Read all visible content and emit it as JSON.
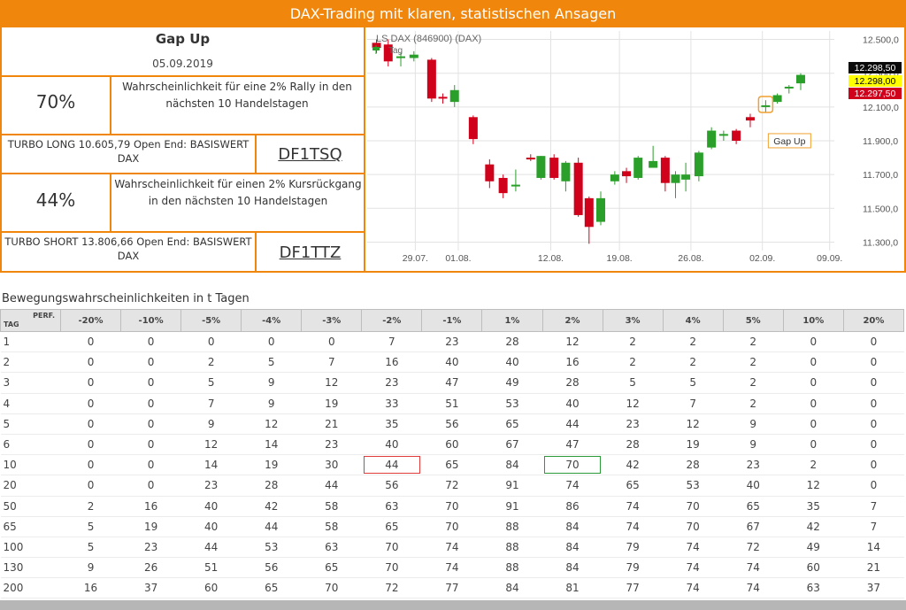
{
  "header": {
    "title": "DAX-Trading mit klaren, statistischen Ansagen"
  },
  "signal": {
    "title": "Gap Up",
    "date": "05.09.2019"
  },
  "rally": {
    "pct": "70%",
    "text": "Wahrscheinlichkeit für eine 2% Rally in den nächsten 10 Handelstagen"
  },
  "turbo_long": {
    "text": "TURBO LONG 10.605,79 Open End: BASISWERT DAX",
    "code": "DF1TSQ"
  },
  "decline": {
    "pct": "44%",
    "text": "Wahrscheinlichkeit für einen 2% Kursrückgang in den nächsten 10 Handelstagen"
  },
  "turbo_short": {
    "text": "TURBO SHORT 13.806,66 Open End: BASISWERT DAX",
    "code": "DF1TTZ"
  },
  "chart_data": {
    "type": "candlestick",
    "title": "LS DAX (846900) (DAX)",
    "legend_label": "Tag",
    "annotation": "Gap Up",
    "ylim": [
      11250,
      12550
    ],
    "y_ticks": [
      "12.500,0",
      "12.300,0",
      "12.100,0",
      "11.900,0",
      "11.700,0",
      "11.500,0",
      "11.300,0"
    ],
    "x_ticks": [
      "29.07.",
      "01.08.",
      "12.08.",
      "19.08.",
      "26.08.",
      "02.09.",
      "09.09."
    ],
    "price_tags": [
      {
        "label": "12.298,50",
        "color": "#0a0a0a"
      },
      {
        "label": "12.298,00",
        "color": "#ffff00"
      },
      {
        "label": "12.297,50",
        "color": "#d0021b"
      }
    ],
    "candles": [
      {
        "o": 12480,
        "h": 12500,
        "l": 12420,
        "c": 12450
      },
      {
        "o": 12470,
        "h": 12500,
        "l": 12340,
        "c": 12370
      },
      {
        "o": 12390,
        "h": 12420,
        "l": 12340,
        "c": 12400
      },
      {
        "o": 12390,
        "h": 12430,
        "l": 12370,
        "c": 12410
      },
      {
        "o": 12380,
        "h": 12390,
        "l": 12130,
        "c": 12150
      },
      {
        "o": 12160,
        "h": 12180,
        "l": 12120,
        "c": 12150
      },
      {
        "o": 12130,
        "h": 12230,
        "l": 12100,
        "c": 12200
      },
      {
        "o": 12040,
        "h": 12050,
        "l": 11880,
        "c": 11910
      },
      {
        "o": 11760,
        "h": 11790,
        "l": 11620,
        "c": 11660
      },
      {
        "o": 11680,
        "h": 11700,
        "l": 11560,
        "c": 11590
      },
      {
        "o": 11640,
        "h": 11730,
        "l": 11600,
        "c": 11640
      },
      {
        "o": 11800,
        "h": 11820,
        "l": 11780,
        "c": 11790
      },
      {
        "o": 11680,
        "h": 11810,
        "l": 11670,
        "c": 11810
      },
      {
        "o": 11800,
        "h": 11820,
        "l": 11670,
        "c": 11680
      },
      {
        "o": 11660,
        "h": 11780,
        "l": 11600,
        "c": 11770
      },
      {
        "o": 11770,
        "h": 11800,
        "l": 11450,
        "c": 11460
      },
      {
        "o": 11560,
        "h": 11570,
        "l": 11290,
        "c": 11390
      },
      {
        "o": 11420,
        "h": 11600,
        "l": 11400,
        "c": 11560
      },
      {
        "o": 11660,
        "h": 11720,
        "l": 11640,
        "c": 11700
      },
      {
        "o": 11720,
        "h": 11740,
        "l": 11650,
        "c": 11690
      },
      {
        "o": 11680,
        "h": 11810,
        "l": 11670,
        "c": 11800
      },
      {
        "o": 11740,
        "h": 11870,
        "l": 11740,
        "c": 11780
      },
      {
        "o": 11800,
        "h": 11810,
        "l": 11600,
        "c": 11650
      },
      {
        "o": 11650,
        "h": 11720,
        "l": 11560,
        "c": 11700
      },
      {
        "o": 11670,
        "h": 11770,
        "l": 11600,
        "c": 11700
      },
      {
        "o": 11690,
        "h": 11840,
        "l": 11660,
        "c": 11830
      },
      {
        "o": 11860,
        "h": 11980,
        "l": 11850,
        "c": 11960
      },
      {
        "o": 11930,
        "h": 11960,
        "l": 11900,
        "c": 11940
      },
      {
        "o": 11960,
        "h": 11970,
        "l": 11880,
        "c": 11900
      },
      {
        "o": 12040,
        "h": 12060,
        "l": 11980,
        "c": 12020
      },
      {
        "o": 12100,
        "h": 12140,
        "l": 12070,
        "c": 12110
      },
      {
        "o": 12130,
        "h": 12180,
        "l": 12120,
        "c": 12170
      },
      {
        "o": 12210,
        "h": 12230,
        "l": 12180,
        "c": 12220
      },
      {
        "o": 12240,
        "h": 12300,
        "l": 12200,
        "c": 12290
      }
    ],
    "candle_x_fraction": [
      0.02,
      0.045,
      0.072,
      0.1,
      0.138,
      0.162,
      0.187,
      0.227,
      0.262,
      0.291,
      0.318,
      0.35,
      0.372,
      0.4,
      0.425,
      0.452,
      0.475,
      0.5,
      0.53,
      0.555,
      0.58,
      0.612,
      0.638,
      0.66,
      0.682,
      0.71,
      0.737,
      0.763,
      0.79,
      0.82,
      0.853,
      0.878,
      0.903,
      0.928
    ]
  },
  "table": {
    "title": "Bewegungswahrscheinlichkeiten in t Tagen",
    "perf_label": "PERF.",
    "tag_label": "TAG",
    "headers": [
      "-20%",
      "-10%",
      "-5%",
      "-4%",
      "-3%",
      "-2%",
      "-1%",
      "1%",
      "2%",
      "3%",
      "4%",
      "5%",
      "10%",
      "20%"
    ],
    "rows": [
      {
        "tag": "1",
        "values": [
          "0",
          "0",
          "0",
          "0",
          "0",
          "7",
          "23",
          "28",
          "12",
          "2",
          "2",
          "2",
          "0",
          "0"
        ]
      },
      {
        "tag": "2",
        "values": [
          "0",
          "0",
          "2",
          "5",
          "7",
          "16",
          "40",
          "40",
          "16",
          "2",
          "2",
          "2",
          "0",
          "0"
        ]
      },
      {
        "tag": "3",
        "values": [
          "0",
          "0",
          "5",
          "9",
          "12",
          "23",
          "47",
          "49",
          "28",
          "5",
          "5",
          "2",
          "0",
          "0"
        ]
      },
      {
        "tag": "4",
        "values": [
          "0",
          "0",
          "7",
          "9",
          "19",
          "33",
          "51",
          "53",
          "40",
          "12",
          "7",
          "2",
          "0",
          "0"
        ]
      },
      {
        "tag": "5",
        "values": [
          "0",
          "0",
          "9",
          "12",
          "21",
          "35",
          "56",
          "65",
          "44",
          "23",
          "12",
          "9",
          "0",
          "0"
        ]
      },
      {
        "tag": "6",
        "values": [
          "0",
          "0",
          "12",
          "14",
          "23",
          "40",
          "60",
          "67",
          "47",
          "28",
          "19",
          "9",
          "0",
          "0"
        ]
      },
      {
        "tag": "10",
        "values": [
          "0",
          "0",
          "14",
          "19",
          "30",
          "44",
          "65",
          "84",
          "70",
          "42",
          "28",
          "23",
          "2",
          "0"
        ]
      },
      {
        "tag": "20",
        "values": [
          "0",
          "0",
          "23",
          "28",
          "44",
          "56",
          "72",
          "91",
          "74",
          "65",
          "53",
          "40",
          "12",
          "0"
        ]
      },
      {
        "tag": "50",
        "values": [
          "2",
          "16",
          "40",
          "42",
          "58",
          "63",
          "70",
          "91",
          "86",
          "74",
          "70",
          "65",
          "35",
          "7"
        ]
      },
      {
        "tag": "65",
        "values": [
          "5",
          "19",
          "40",
          "44",
          "58",
          "65",
          "70",
          "88",
          "84",
          "74",
          "70",
          "67",
          "42",
          "7"
        ]
      },
      {
        "tag": "100",
        "values": [
          "5",
          "23",
          "44",
          "53",
          "63",
          "70",
          "74",
          "88",
          "84",
          "79",
          "74",
          "72",
          "49",
          "14"
        ]
      },
      {
        "tag": "130",
        "values": [
          "9",
          "26",
          "51",
          "56",
          "65",
          "70",
          "74",
          "88",
          "84",
          "79",
          "74",
          "74",
          "60",
          "21"
        ]
      },
      {
        "tag": "200",
        "values": [
          "16",
          "37",
          "60",
          "65",
          "70",
          "72",
          "77",
          "84",
          "81",
          "77",
          "74",
          "74",
          "63",
          "37"
        ]
      }
    ],
    "highlight": {
      "row": "10",
      "red_col": "-2%",
      "green_col": "2%"
    }
  }
}
